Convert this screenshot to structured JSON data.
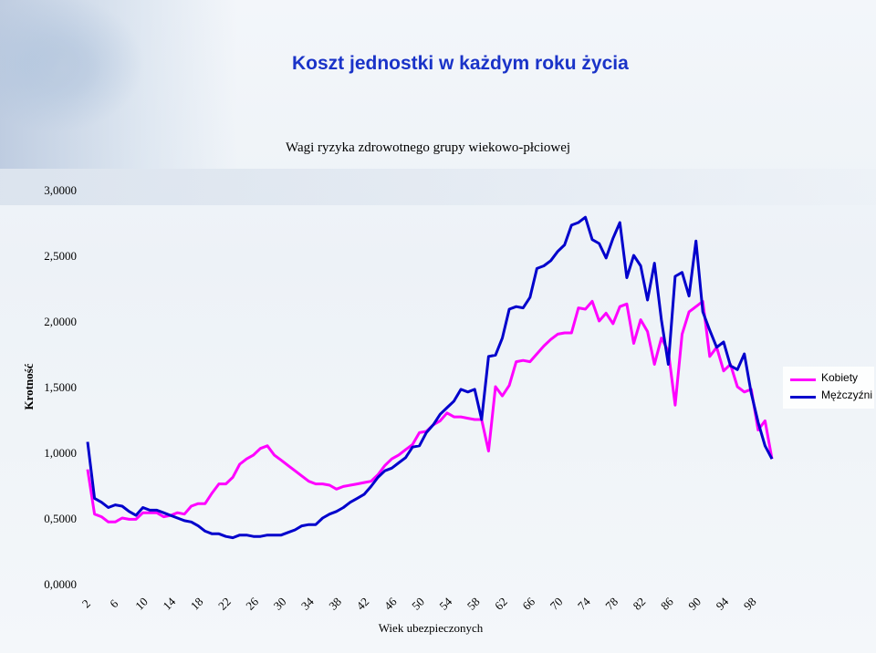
{
  "slide": {
    "title": "Koszt jednostki w każdym roku życia"
  },
  "chart_data": {
    "type": "line",
    "title": "Wagi ryzyka zdrowotnego grupy wiekowo-płciowej",
    "xlabel": "Wiek ubezpieczonych",
    "ylabel": "Krotność",
    "ylim": [
      0,
      3
    ],
    "ytick_labels": [
      "0,0000",
      "0,5000",
      "1,0000",
      "1,5000",
      "2,0000",
      "2,5000",
      "3,0000"
    ],
    "yticks": [
      0,
      0.5,
      1.0,
      1.5,
      2.0,
      2.5,
      3.0
    ],
    "xtick_labels": [
      "2",
      "6",
      "10",
      "14",
      "18",
      "22",
      "26",
      "30",
      "34",
      "38",
      "42",
      "46",
      "50",
      "54",
      "58",
      "62",
      "66",
      "70",
      "74",
      "78",
      "82",
      "86",
      "90",
      "94",
      "98"
    ],
    "x": [
      1,
      2,
      3,
      4,
      5,
      6,
      7,
      8,
      9,
      10,
      11,
      12,
      13,
      14,
      15,
      16,
      17,
      18,
      19,
      20,
      21,
      22,
      23,
      24,
      25,
      26,
      27,
      28,
      29,
      30,
      31,
      32,
      33,
      34,
      35,
      36,
      37,
      38,
      39,
      40,
      41,
      42,
      43,
      44,
      45,
      46,
      47,
      48,
      49,
      50,
      51,
      52,
      53,
      54,
      55,
      56,
      57,
      58,
      59,
      60,
      61,
      62,
      63,
      64,
      65,
      66,
      67,
      68,
      69,
      70,
      71,
      72,
      73,
      74,
      75,
      76,
      77,
      78,
      79,
      80,
      81,
      82,
      83,
      84,
      85,
      86,
      87,
      88,
      89,
      90,
      91,
      92,
      93,
      94,
      95,
      96,
      97,
      98,
      99,
      100
    ],
    "legend_position": "right",
    "grid": false,
    "series": [
      {
        "name": "Kobiety",
        "color": "#ff00ff",
        "values": [
          0.87,
          0.53,
          0.51,
          0.47,
          0.47,
          0.5,
          0.49,
          0.49,
          0.54,
          0.54,
          0.54,
          0.51,
          0.52,
          0.54,
          0.53,
          0.59,
          0.61,
          0.61,
          0.69,
          0.76,
          0.76,
          0.81,
          0.91,
          0.95,
          0.98,
          1.03,
          1.05,
          0.98,
          0.94,
          0.9,
          0.86,
          0.82,
          0.78,
          0.76,
          0.76,
          0.75,
          0.72,
          0.74,
          0.75,
          0.76,
          0.77,
          0.78,
          0.83,
          0.9,
          0.95,
          0.98,
          1.02,
          1.06,
          1.15,
          1.16,
          1.21,
          1.24,
          1.3,
          1.27,
          1.27,
          1.26,
          1.25,
          1.25,
          1.01,
          1.5,
          1.43,
          1.51,
          1.69,
          1.7,
          1.69,
          1.75,
          1.81,
          1.86,
          1.9,
          1.91,
          1.91,
          2.1,
          2.09,
          2.15,
          2.0,
          2.06,
          1.98,
          2.11,
          2.13,
          1.83,
          2.01,
          1.92,
          1.67,
          1.87,
          1.77,
          1.36,
          1.9,
          2.07,
          2.11,
          2.15,
          1.73,
          1.8,
          1.62,
          1.67,
          1.5,
          1.46,
          1.48,
          1.17,
          1.24,
          0.95
        ]
      },
      {
        "name": "Mężczyźni",
        "color": "#0000cc",
        "values": [
          1.08,
          0.65,
          0.62,
          0.58,
          0.6,
          0.59,
          0.55,
          0.52,
          0.58,
          0.56,
          0.56,
          0.54,
          0.52,
          0.5,
          0.48,
          0.47,
          0.44,
          0.4,
          0.38,
          0.38,
          0.36,
          0.35,
          0.37,
          0.37,
          0.36,
          0.36,
          0.37,
          0.37,
          0.37,
          0.39,
          0.41,
          0.44,
          0.45,
          0.45,
          0.5,
          0.53,
          0.55,
          0.58,
          0.62,
          0.65,
          0.68,
          0.74,
          0.81,
          0.86,
          0.88,
          0.92,
          0.96,
          1.04,
          1.05,
          1.15,
          1.21,
          1.29,
          1.34,
          1.39,
          1.48,
          1.46,
          1.48,
          1.25,
          1.73,
          1.74,
          1.87,
          2.09,
          2.11,
          2.1,
          2.18,
          2.4,
          2.42,
          2.46,
          2.53,
          2.58,
          2.73,
          2.75,
          2.79,
          2.62,
          2.59,
          2.48,
          2.63,
          2.75,
          2.33,
          2.5,
          2.42,
          2.16,
          2.44,
          2.01,
          1.67,
          2.34,
          2.37,
          2.19,
          2.61,
          2.07,
          1.93,
          1.8,
          1.84,
          1.66,
          1.63,
          1.75,
          1.45,
          1.23,
          1.05,
          0.95
        ]
      }
    ]
  }
}
